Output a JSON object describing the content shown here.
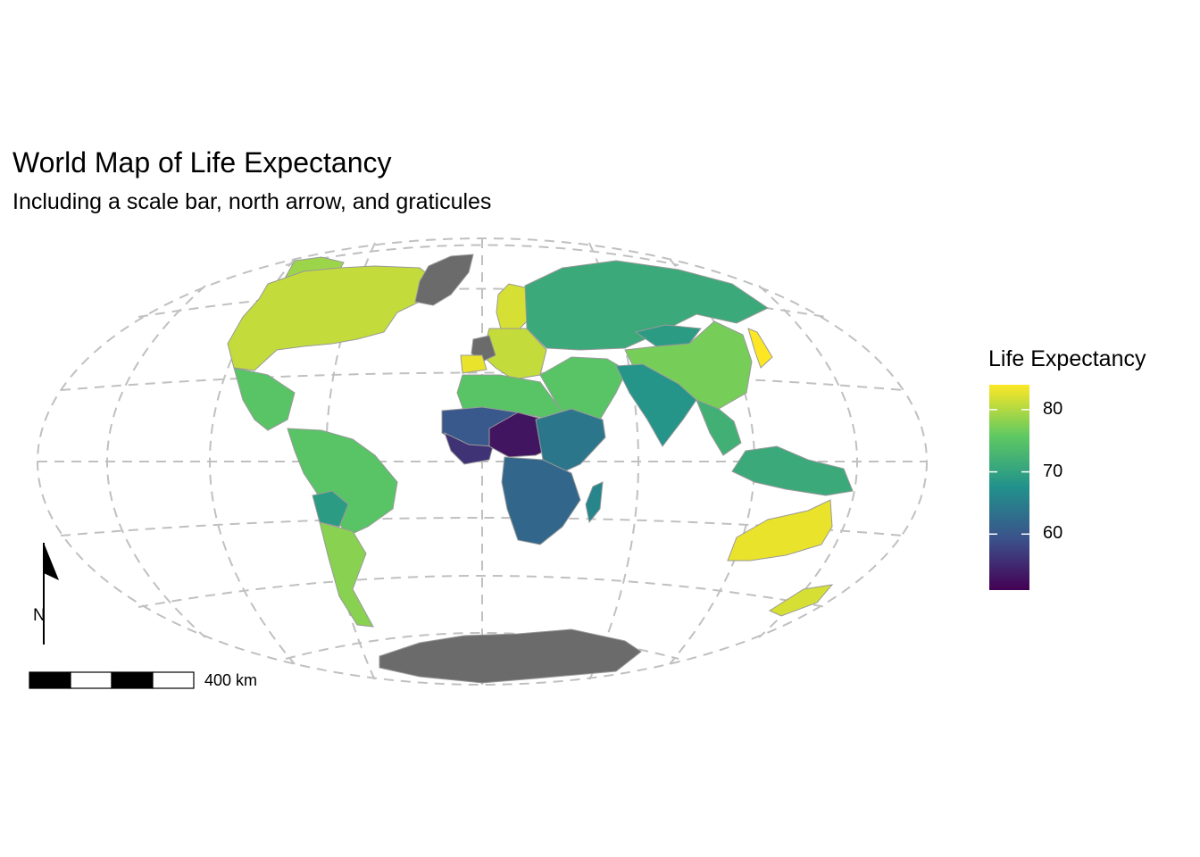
{
  "map": {
    "title": "World Map of Life Expectancy",
    "subtitle": "Including a scale bar, north arrow, and graticules",
    "projection": "winkel-tripel-like",
    "graticule": true,
    "missing_data_color": "#6b6b6b",
    "background_color": "#ffffff",
    "graticule_color": "#c0c0c0"
  },
  "legend": {
    "title": "Life Expectancy",
    "palette": "viridis",
    "min": 51,
    "max": 84,
    "stops": [
      "#440154",
      "#3b528b",
      "#21918c",
      "#5ec962",
      "#fde725"
    ],
    "ticks": [
      {
        "value": 80,
        "label": "80"
      },
      {
        "value": 70,
        "label": "70"
      },
      {
        "value": 60,
        "label": "60"
      }
    ]
  },
  "scale_bar": {
    "label": "400 km",
    "segments": 4
  },
  "north_arrow": {
    "label": "N"
  },
  "regions": [
    {
      "name": "North America",
      "value": 81
    },
    {
      "name": "Greenland",
      "value": null
    },
    {
      "name": "Alaska",
      "value": 79
    },
    {
      "name": "Central America",
      "value": 75
    },
    {
      "name": "South America",
      "value": 75
    },
    {
      "name": "Bolivia",
      "value": 69
    },
    {
      "name": "Southern Cone",
      "value": 78
    },
    {
      "name": "Western Europe",
      "value": 81
    },
    {
      "name": "France",
      "value": null
    },
    {
      "name": "Spain",
      "value": 83
    },
    {
      "name": "Scandinavia",
      "value": 82
    },
    {
      "name": "Russia",
      "value": 71
    },
    {
      "name": "China",
      "value": 77
    },
    {
      "name": "Mongolia",
      "value": 69
    },
    {
      "name": "Japan",
      "value": 84
    },
    {
      "name": "Middle East",
      "value": 75
    },
    {
      "name": "South Asia",
      "value": 68
    },
    {
      "name": "Southeast Asia",
      "value": 72
    },
    {
      "name": "Indonesia",
      "value": 71
    },
    {
      "name": "North Africa",
      "value": 75
    },
    {
      "name": "Sahel",
      "value": 60
    },
    {
      "name": "West Africa",
      "value": 56
    },
    {
      "name": "Central Africa",
      "value": 53
    },
    {
      "name": "East Africa",
      "value": 64
    },
    {
      "name": "Southern Africa",
      "value": 62
    },
    {
      "name": "Madagascar",
      "value": 66
    },
    {
      "name": "Australia",
      "value": 83
    },
    {
      "name": "New Zealand",
      "value": 82
    },
    {
      "name": "Antarctica",
      "value": null
    }
  ]
}
